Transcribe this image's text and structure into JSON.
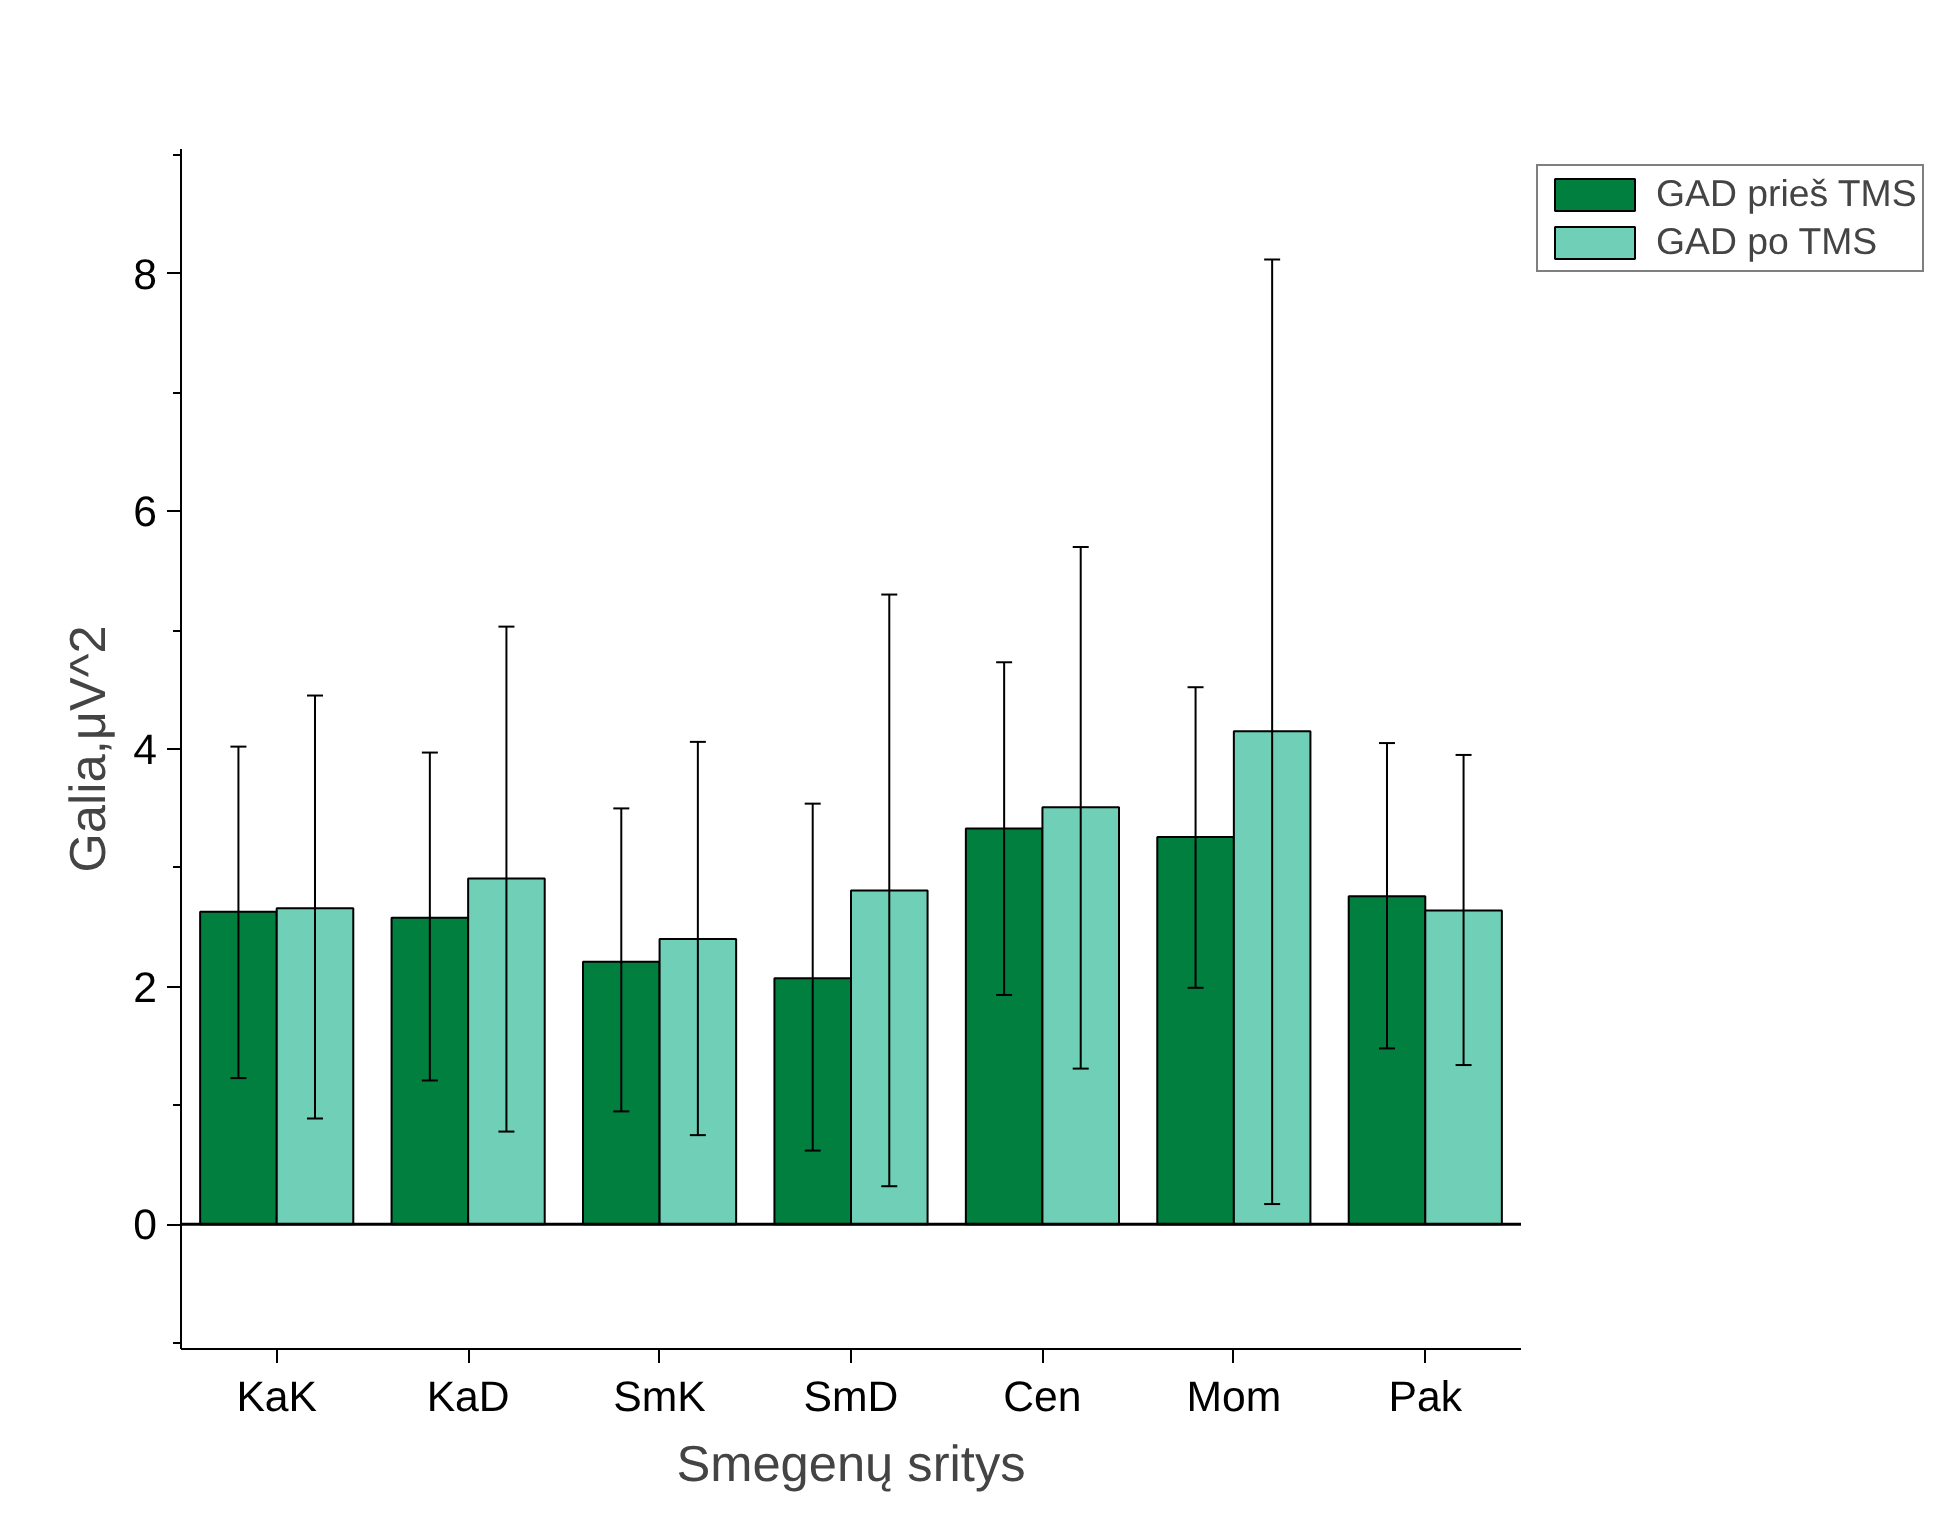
{
  "chart_data": {
    "type": "bar",
    "xlabel": "Smegenų sritys",
    "ylabel": "Galia,μV^2",
    "categories": [
      "KaK",
      "KaD",
      "SmK",
      "SmD",
      "Cen",
      "Mom",
      "Pak"
    ],
    "series": [
      {
        "name": "GAD prieš TMS",
        "color": "#007f3f",
        "values": [
          2.63,
          2.58,
          2.21,
          2.07,
          3.33,
          3.26,
          2.76
        ],
        "errors": [
          [
            1.23,
            4.02
          ],
          [
            1.21,
            3.97
          ],
          [
            0.95,
            3.5
          ],
          [
            0.62,
            3.54
          ],
          [
            1.93,
            4.73
          ],
          [
            1.99,
            4.52
          ],
          [
            1.48,
            4.05
          ]
        ]
      },
      {
        "name": "GAD po TMS",
        "color": "#6fcfb7",
        "values": [
          2.66,
          2.91,
          2.4,
          2.81,
          3.51,
          4.15,
          2.64
        ],
        "errors": [
          [
            0.89,
            4.45
          ],
          [
            0.78,
            5.03
          ],
          [
            0.75,
            4.06
          ],
          [
            0.32,
            5.3
          ],
          [
            1.31,
            5.7
          ],
          [
            0.17,
            8.12
          ],
          [
            1.34,
            3.95
          ]
        ]
      }
    ],
    "ylim": [
      -1.05,
      9.05
    ],
    "yticks": [
      {
        "value": -1,
        "label": null
      },
      0,
      {
        "value": 1,
        "label": null
      },
      2,
      {
        "value": 3,
        "label": null
      },
      4,
      {
        "value": 5,
        "label": null
      },
      6,
      {
        "value": 7,
        "label": null
      },
      8,
      {
        "value": 9,
        "label": null
      }
    ],
    "ref_lines": [
      {
        "axis": "y",
        "value": 0,
        "color": "#000000"
      }
    ],
    "grid": false,
    "legend": "top right"
  }
}
